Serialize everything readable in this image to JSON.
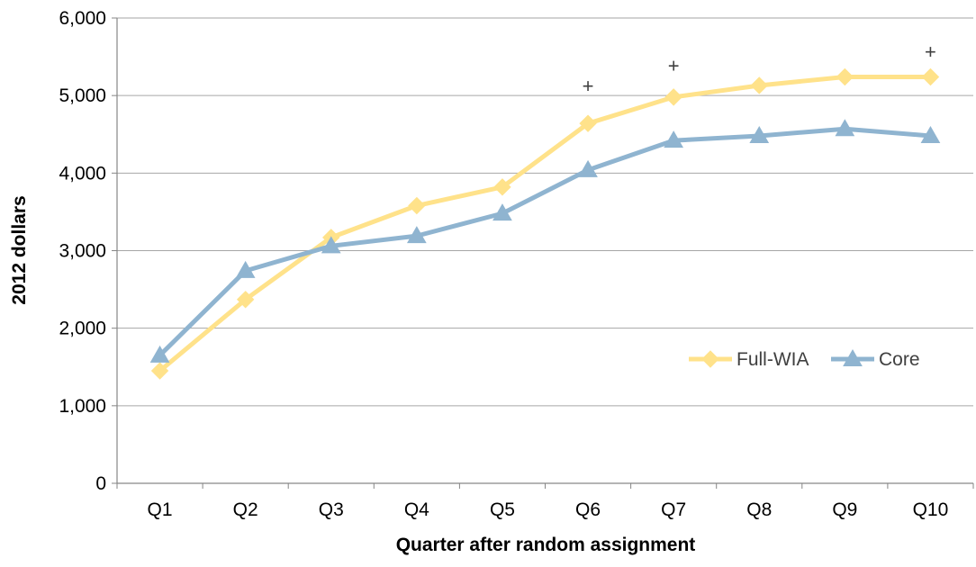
{
  "chart_data": {
    "type": "line",
    "title": "",
    "xlabel": "Quarter after random assignment",
    "ylabel": "2012 dollars",
    "categories": [
      "Q1",
      "Q2",
      "Q3",
      "Q4",
      "Q5",
      "Q6",
      "Q7",
      "Q8",
      "Q9",
      "Q10"
    ],
    "ylim": [
      0,
      6000
    ],
    "yticks": [
      0,
      1000,
      2000,
      3000,
      4000,
      5000,
      6000
    ],
    "ytick_labels": [
      "0",
      "1,000",
      "2,000",
      "3,000",
      "4,000",
      "5,000",
      "6,000"
    ],
    "grid": true,
    "legend_position": "right",
    "series": [
      {
        "name": "Full-WIA",
        "values": [
          1450,
          2370,
          3170,
          3580,
          3820,
          4640,
          4980,
          5130,
          5240,
          5240
        ],
        "color": "#FFE28A",
        "marker": "diamond"
      },
      {
        "name": "Core",
        "values": [
          1650,
          2740,
          3060,
          3190,
          3480,
          4040,
          4420,
          4480,
          4570,
          4480
        ],
        "color": "#8FB4D0",
        "marker": "triangle"
      }
    ],
    "annotations": [
      {
        "category": "Q6",
        "value": 5130,
        "text": "+"
      },
      {
        "category": "Q7",
        "value": 5390,
        "text": "+"
      },
      {
        "category": "Q10",
        "value": 5570,
        "text": "+"
      }
    ]
  }
}
